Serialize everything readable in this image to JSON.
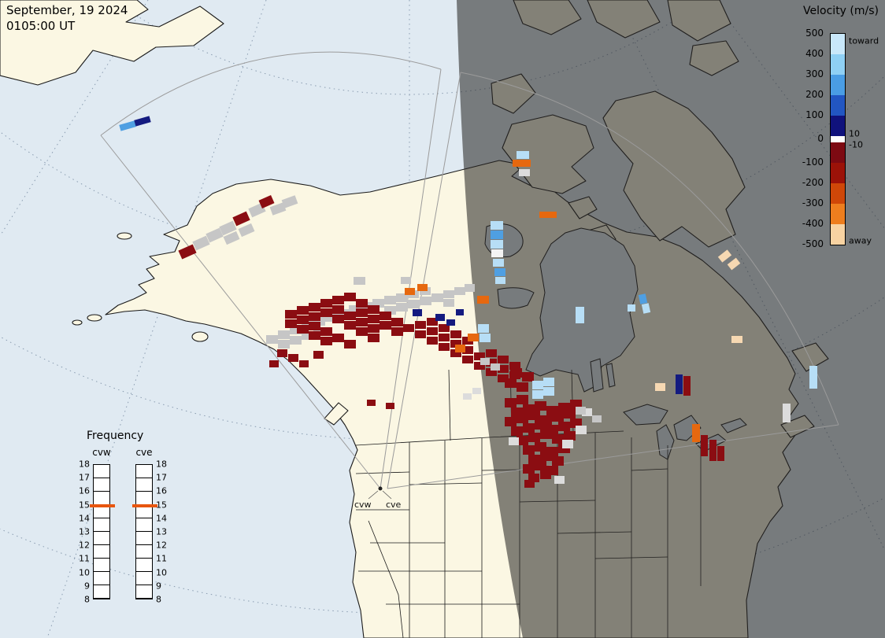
{
  "header": {
    "date": "September, 19 2024",
    "time": "0105:00 UT"
  },
  "velocity_legend": {
    "title": "Velocity (m/s)",
    "toward_label": "toward",
    "away_label": "away",
    "left_ticks": [
      "500",
      "400",
      "300",
      "200",
      "100",
      "0",
      "-100",
      "-200",
      "-300",
      "-400",
      "-500"
    ],
    "gap_tick_positive": "10",
    "gap_tick_negative": "-10",
    "toward_colors": [
      "#c9e8fa",
      "#8fd0f4",
      "#4a9de4",
      "#2256c2",
      "#10127c"
    ],
    "away_colors": [
      "#7d0a12",
      "#9c1208",
      "#cf4708",
      "#ee7e1e",
      "#f8d3a2"
    ]
  },
  "frequency_legend": {
    "title": "Frequency",
    "column_labels": [
      "cvw",
      "cve"
    ],
    "ticks": [
      "18",
      "17",
      "16",
      "15",
      "14",
      "13",
      "12",
      "11",
      "10",
      "9",
      "8"
    ],
    "marker_tick": "15",
    "marker_color": "#e8560f"
  },
  "map": {
    "radar_site_labels": [
      "cvw",
      "cve"
    ],
    "palette": {
      "dr": "#8b0d12",
      "gy": "#c6c6c6",
      "lg": "#dcdcdc",
      "lb": "#b7def6",
      "mb": "#4f9fe2",
      "db": "#141b80",
      "or": "#e6680f",
      "cr": "#f6d8b2",
      "wt": "#f4f4f4"
    },
    "cells": [
      [
        152,
        156,
        20,
        8,
        "mb",
        -16
      ],
      [
        171,
        150,
        20,
        8,
        "db",
        -16
      ],
      [
        228,
        314,
        20,
        12,
        "dr",
        -24
      ],
      [
        246,
        303,
        19,
        12,
        "gy",
        -24
      ],
      [
        263,
        293,
        19,
        12,
        "gy",
        -24
      ],
      [
        280,
        284,
        19,
        12,
        "gy",
        -24
      ],
      [
        285,
        297,
        18,
        11,
        "gy",
        -24
      ],
      [
        297,
        272,
        19,
        12,
        "dr",
        -24
      ],
      [
        304,
        287,
        18,
        11,
        "gy",
        -24
      ],
      [
        317,
        261,
        19,
        12,
        "gy",
        -24
      ],
      [
        330,
        251,
        17,
        11,
        "dr",
        -24
      ],
      [
        344,
        260,
        18,
        11,
        "gy",
        -20
      ],
      [
        359,
        251,
        18,
        11,
        "gy",
        -20
      ],
      [
        449,
        352,
        15,
        10,
        "gy"
      ],
      [
        509,
        352,
        13,
        9,
        "gy"
      ],
      [
        338,
        426,
        15,
        11,
        "gy"
      ],
      [
        353,
        420,
        15,
        11,
        "gy"
      ],
      [
        368,
        414,
        15,
        11,
        "gy"
      ],
      [
        383,
        408,
        15,
        11,
        "gy"
      ],
      [
        398,
        403,
        15,
        11,
        "gy"
      ],
      [
        413,
        398,
        15,
        11,
        "gy"
      ],
      [
        428,
        393,
        15,
        11,
        "gy"
      ],
      [
        443,
        388,
        15,
        11,
        "gy"
      ],
      [
        458,
        384,
        15,
        11,
        "gy"
      ],
      [
        473,
        380,
        15,
        11,
        "gy"
      ],
      [
        488,
        376,
        15,
        11,
        "gy"
      ],
      [
        503,
        373,
        15,
        11,
        "gy"
      ],
      [
        353,
        432,
        15,
        11,
        "gy"
      ],
      [
        368,
        427,
        15,
        11,
        "gy"
      ],
      [
        383,
        421,
        15,
        11,
        "gy"
      ],
      [
        398,
        416,
        15,
        11,
        "gy"
      ],
      [
        488,
        389,
        15,
        11,
        "gy"
      ],
      [
        503,
        385,
        15,
        11,
        "gy"
      ],
      [
        518,
        381,
        15,
        11,
        "gy"
      ],
      [
        533,
        377,
        15,
        11,
        "gy"
      ],
      [
        548,
        373,
        15,
        11,
        "gy"
      ],
      [
        563,
        369,
        14,
        10,
        "gy"
      ],
      [
        577,
        365,
        14,
        10,
        "gy"
      ],
      [
        518,
        369,
        14,
        10,
        "gy"
      ],
      [
        533,
        365,
        14,
        10,
        "gy"
      ],
      [
        590,
        361,
        13,
        10,
        "gy"
      ],
      [
        563,
        380,
        14,
        10,
        "gy"
      ],
      [
        362,
        394,
        15,
        11,
        "dr"
      ],
      [
        377,
        389,
        15,
        11,
        "dr"
      ],
      [
        392,
        385,
        15,
        11,
        "dr"
      ],
      [
        407,
        380,
        15,
        11,
        "dr"
      ],
      [
        422,
        376,
        15,
        11,
        "dr"
      ],
      [
        437,
        372,
        15,
        11,
        "dr"
      ],
      [
        362,
        406,
        15,
        11,
        "dr"
      ],
      [
        377,
        401,
        15,
        11,
        "dr"
      ],
      [
        392,
        397,
        15,
        11,
        "dr"
      ],
      [
        407,
        392,
        15,
        11,
        "dr"
      ],
      [
        422,
        388,
        15,
        11,
        "dr"
      ],
      [
        452,
        380,
        15,
        11,
        "dr"
      ],
      [
        377,
        413,
        15,
        11,
        "dr"
      ],
      [
        392,
        409,
        15,
        11,
        "dr"
      ],
      [
        422,
        400,
        15,
        11,
        "dr"
      ],
      [
        437,
        396,
        15,
        11,
        "dr"
      ],
      [
        452,
        392,
        15,
        11,
        "dr"
      ],
      [
        467,
        388,
        15,
        11,
        "dr"
      ],
      [
        392,
        421,
        15,
        11,
        "dr"
      ],
      [
        407,
        416,
        15,
        11,
        "dr"
      ],
      [
        437,
        408,
        15,
        11,
        "dr"
      ],
      [
        452,
        404,
        15,
        11,
        "dr"
      ],
      [
        467,
        400,
        15,
        11,
        "dr"
      ],
      [
        482,
        396,
        15,
        11,
        "dr"
      ],
      [
        407,
        428,
        15,
        11,
        "dr"
      ],
      [
        422,
        424,
        15,
        11,
        "dr"
      ],
      [
        452,
        416,
        15,
        11,
        "dr"
      ],
      [
        467,
        412,
        15,
        11,
        "dr"
      ],
      [
        482,
        408,
        15,
        11,
        "dr"
      ],
      [
        497,
        404,
        15,
        11,
        "dr"
      ],
      [
        437,
        432,
        15,
        11,
        "dr"
      ],
      [
        467,
        424,
        15,
        11,
        "dr"
      ],
      [
        497,
        416,
        15,
        11,
        "dr"
      ],
      [
        352,
        444,
        13,
        10,
        "dr"
      ],
      [
        366,
        450,
        13,
        10,
        "dr"
      ],
      [
        342,
        458,
        12,
        9,
        "dr"
      ],
      [
        380,
        458,
        12,
        9,
        "dr"
      ],
      [
        398,
        446,
        13,
        10,
        "dr"
      ],
      [
        512,
        412,
        14,
        10,
        "dr"
      ],
      [
        527,
        408,
        14,
        10,
        "dr"
      ],
      [
        542,
        404,
        14,
        10,
        "dr"
      ],
      [
        527,
        420,
        14,
        10,
        "dr"
      ],
      [
        542,
        416,
        14,
        10,
        "dr"
      ],
      [
        557,
        412,
        14,
        10,
        "dr"
      ],
      [
        542,
        428,
        14,
        10,
        "dr"
      ],
      [
        557,
        424,
        14,
        10,
        "dr"
      ],
      [
        572,
        420,
        14,
        10,
        "dr"
      ],
      [
        557,
        436,
        14,
        10,
        "dr"
      ],
      [
        572,
        432,
        14,
        10,
        "dr"
      ],
      [
        587,
        428,
        14,
        10,
        "dr"
      ],
      [
        572,
        444,
        14,
        10,
        "dr"
      ],
      [
        587,
        440,
        14,
        10,
        "dr"
      ],
      [
        602,
        448,
        14,
        10,
        "dr"
      ],
      [
        587,
        452,
        14,
        10,
        "dr"
      ],
      [
        617,
        444,
        14,
        10,
        "dr"
      ],
      [
        602,
        460,
        14,
        10,
        "dr"
      ],
      [
        617,
        456,
        14,
        10,
        "dr"
      ],
      [
        632,
        452,
        14,
        10,
        "dr"
      ],
      [
        617,
        468,
        14,
        10,
        "dr"
      ],
      [
        632,
        464,
        14,
        10,
        "dr"
      ],
      [
        647,
        460,
        14,
        10,
        "dr"
      ],
      [
        632,
        476,
        14,
        10,
        "dr"
      ],
      [
        647,
        472,
        14,
        10,
        "dr"
      ],
      [
        524,
        393,
        12,
        9,
        "db"
      ],
      [
        553,
        399,
        12,
        9,
        "db"
      ],
      [
        567,
        406,
        11,
        8,
        "db"
      ],
      [
        579,
        393,
        10,
        8,
        "db"
      ],
      [
        514,
        366,
        13,
        9,
        "or"
      ],
      [
        530,
        361,
        13,
        9,
        "or"
      ],
      [
        594,
        424,
        14,
        10,
        "or"
      ],
      [
        578,
        438,
        13,
        10,
        "or"
      ],
      [
        607,
        412,
        14,
        11,
        "lb"
      ],
      [
        609,
        424,
        14,
        11,
        "lb"
      ],
      [
        466,
        508,
        11,
        8,
        "dr"
      ],
      [
        490,
        512,
        11,
        8,
        "dr"
      ],
      [
        610,
        455,
        12,
        9,
        "gy"
      ],
      [
        623,
        462,
        12,
        9,
        "gy"
      ],
      [
        588,
        500,
        11,
        8,
        "lg"
      ],
      [
        600,
        493,
        11,
        8,
        "lg"
      ],
      [
        648,
        468,
        15,
        12,
        "dr"
      ],
      [
        663,
        473,
        15,
        12,
        "dr"
      ],
      [
        641,
        481,
        15,
        12,
        "dr"
      ],
      [
        656,
        486,
        15,
        12,
        "dr"
      ],
      [
        641,
        506,
        15,
        12,
        "dr"
      ],
      [
        656,
        502,
        15,
        12,
        "dr"
      ],
      [
        649,
        518,
        15,
        12,
        "dr"
      ],
      [
        664,
        514,
        15,
        12,
        "dr"
      ],
      [
        679,
        510,
        15,
        12,
        "dr"
      ],
      [
        694,
        516,
        15,
        12,
        "dr"
      ],
      [
        709,
        512,
        15,
        12,
        "dr"
      ],
      [
        724,
        508,
        15,
        12,
        "dr"
      ],
      [
        641,
        530,
        15,
        12,
        "dr"
      ],
      [
        656,
        526,
        15,
        12,
        "dr"
      ],
      [
        671,
        522,
        15,
        12,
        "dr"
      ],
      [
        686,
        528,
        15,
        12,
        "dr"
      ],
      [
        701,
        524,
        15,
        12,
        "dr"
      ],
      [
        716,
        520,
        15,
        12,
        "dr"
      ],
      [
        649,
        542,
        15,
        12,
        "dr"
      ],
      [
        664,
        538,
        15,
        12,
        "dr"
      ],
      [
        679,
        534,
        15,
        12,
        "dr"
      ],
      [
        694,
        540,
        15,
        12,
        "dr"
      ],
      [
        709,
        536,
        15,
        12,
        "dr"
      ],
      [
        724,
        532,
        15,
        12,
        "dr"
      ],
      [
        656,
        554,
        15,
        12,
        "dr"
      ],
      [
        671,
        550,
        15,
        12,
        "dr"
      ],
      [
        686,
        546,
        15,
        12,
        "dr"
      ],
      [
        701,
        552,
        15,
        12,
        "dr"
      ],
      [
        716,
        548,
        15,
        12,
        "dr"
      ],
      [
        664,
        566,
        15,
        12,
        "dr"
      ],
      [
        679,
        562,
        15,
        12,
        "dr"
      ],
      [
        694,
        568,
        15,
        12,
        "dr"
      ],
      [
        709,
        564,
        15,
        12,
        "dr"
      ],
      [
        671,
        578,
        15,
        12,
        "dr"
      ],
      [
        686,
        574,
        15,
        12,
        "dr"
      ],
      [
        701,
        580,
        15,
        12,
        "dr"
      ],
      [
        664,
        590,
        15,
        12,
        "dr"
      ],
      [
        679,
        586,
        15,
        12,
        "dr"
      ],
      [
        694,
        592,
        15,
        12,
        "dr"
      ],
      [
        671,
        602,
        14,
        11,
        "dr"
      ],
      [
        686,
        598,
        14,
        11,
        "dr"
      ],
      [
        666,
        610,
        13,
        10,
        "dr"
      ],
      [
        676,
        484,
        14,
        11,
        "lb"
      ],
      [
        690,
        480,
        14,
        11,
        "lb"
      ],
      [
        676,
        496,
        14,
        11,
        "lb"
      ],
      [
        690,
        492,
        14,
        11,
        "lb"
      ],
      [
        731,
        541,
        14,
        11,
        "lg"
      ],
      [
        714,
        559,
        14,
        11,
        "lg"
      ],
      [
        646,
        556,
        13,
        10,
        "lg"
      ],
      [
        704,
        605,
        13,
        10,
        "lg"
      ],
      [
        739,
        519,
        13,
        10,
        "lg"
      ],
      [
        752,
        528,
        12,
        9,
        "gy"
      ],
      [
        731,
        517,
        13,
        10,
        "gy"
      ],
      [
        656,
        192,
        16,
        10,
        "lb"
      ],
      [
        651,
        203,
        23,
        9,
        "or"
      ],
      [
        659,
        215,
        14,
        9,
        "lg"
      ],
      [
        685,
        269,
        22,
        8,
        "or"
      ],
      [
        623,
        281,
        16,
        11,
        "lb"
      ],
      [
        623,
        293,
        16,
        11,
        "mb"
      ],
      [
        623,
        305,
        16,
        11,
        "lb"
      ],
      [
        624,
        317,
        15,
        10,
        "wt"
      ],
      [
        626,
        329,
        14,
        10,
        "lb"
      ],
      [
        628,
        341,
        14,
        10,
        "mb"
      ],
      [
        629,
        352,
        13,
        9,
        "lb"
      ],
      [
        606,
        376,
        15,
        10,
        "or"
      ],
      [
        731,
        390,
        11,
        21,
        "lb"
      ],
      [
        812,
        374,
        9,
        12,
        "mb",
        -12
      ],
      [
        816,
        386,
        9,
        12,
        "lb",
        -12
      ],
      [
        797,
        387,
        10,
        9,
        "lb"
      ],
      [
        913,
        321,
        15,
        9,
        "cr",
        -38
      ],
      [
        925,
        331,
        14,
        9,
        "cr",
        -38
      ],
      [
        929,
        427,
        14,
        9,
        "cr"
      ],
      [
        832,
        487,
        13,
        10,
        "cr"
      ],
      [
        858,
        476,
        9,
        25,
        "db"
      ],
      [
        868,
        478,
        9,
        25,
        "dr"
      ],
      [
        879,
        539,
        10,
        23,
        "or"
      ],
      [
        890,
        553,
        9,
        27,
        "dr"
      ],
      [
        901,
        559,
        9,
        27,
        "dr"
      ],
      [
        911,
        567,
        9,
        19,
        "dr"
      ],
      [
        994,
        513,
        10,
        24,
        "lg"
      ],
      [
        1028,
        465,
        10,
        29,
        "lb"
      ]
    ]
  }
}
